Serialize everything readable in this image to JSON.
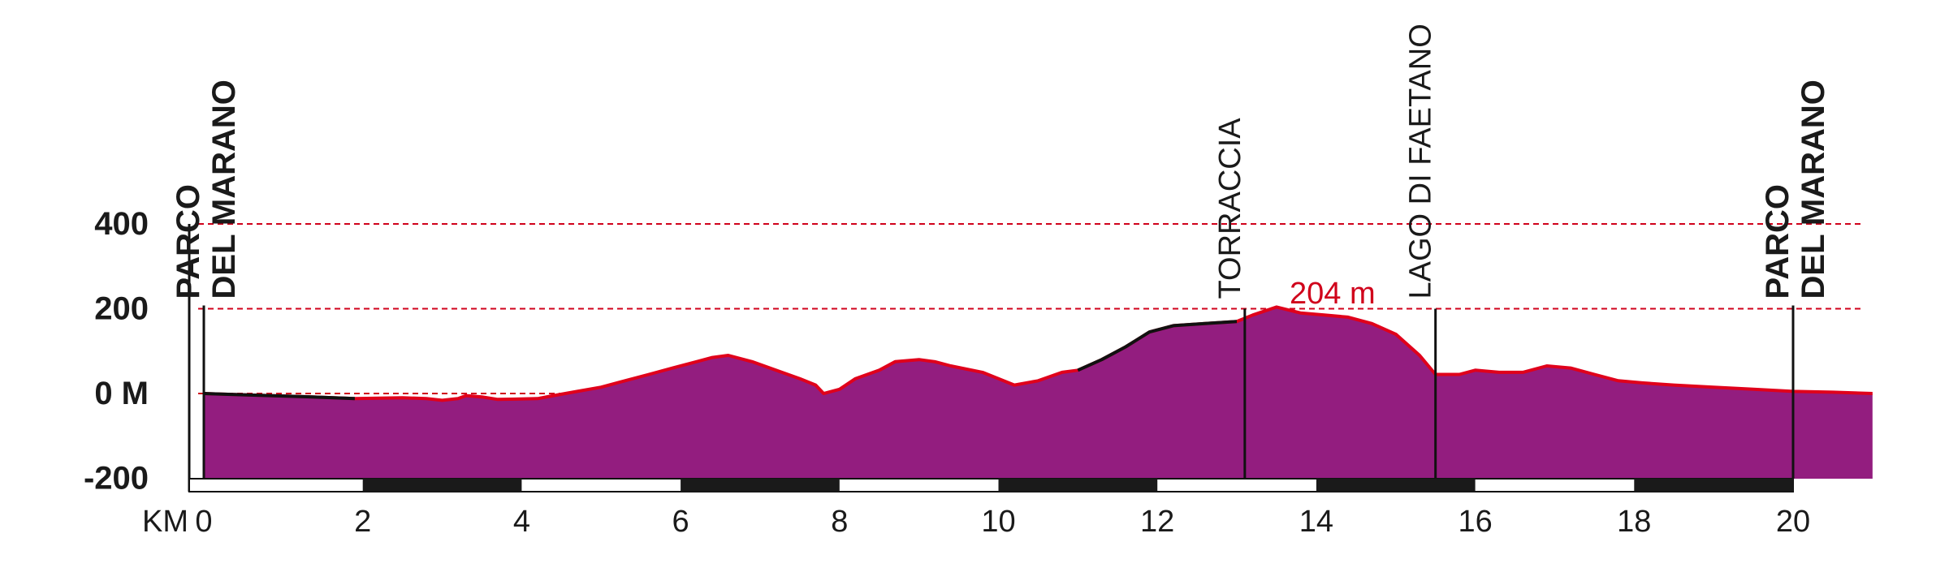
{
  "chart_data": {
    "type": "area",
    "title": "",
    "xlabel": "KM",
    "ylabel": "",
    "xlim": [
      0,
      21
    ],
    "ylim": [
      -200,
      400
    ],
    "x_ticks": [
      "0",
      "2",
      "4",
      "6",
      "8",
      "10",
      "12",
      "14",
      "16",
      "18",
      "20"
    ],
    "y_ticks": [
      {
        "value": 400,
        "label": "400"
      },
      {
        "value": 200,
        "label": "200"
      },
      {
        "value": 0,
        "label": "0 M"
      },
      {
        "value": -200,
        "label": "-200"
      }
    ],
    "reference_lines": [
      400,
      200,
      0
    ],
    "peak_annotation": {
      "x": 13.5,
      "y": 204,
      "label": "204 m"
    },
    "waypoints": [
      {
        "km": 0.0,
        "lines": [
          "PARCO",
          "DEL MARANO"
        ],
        "bold": true
      },
      {
        "km": 13.1,
        "lines": [
          "TORRACCIA"
        ],
        "bold": false
      },
      {
        "km": 15.5,
        "lines": [
          "LAGO DI FAETANO"
        ],
        "bold": false
      },
      {
        "km": 20.0,
        "lines": [
          "PARCO",
          "DEL MARANO"
        ],
        "bold": true
      }
    ],
    "colors": {
      "fill": "#931d7f",
      "outline": "#e0001b",
      "black_segments": "#111111",
      "reference": "#d0021b",
      "axis": "#111111"
    },
    "profile": [
      [
        0.0,
        0
      ],
      [
        0.5,
        -3
      ],
      [
        1.0,
        -6
      ],
      [
        1.5,
        -9
      ],
      [
        1.9,
        -12
      ],
      [
        2.5,
        -10
      ],
      [
        2.8,
        -12
      ],
      [
        3.0,
        -16
      ],
      [
        3.2,
        -12
      ],
      [
        3.3,
        -5
      ],
      [
        3.5,
        -8
      ],
      [
        3.7,
        -14
      ],
      [
        4.2,
        -12
      ],
      [
        4.4,
        -5
      ],
      [
        4.7,
        5
      ],
      [
        5.0,
        15
      ],
      [
        5.3,
        30
      ],
      [
        5.6,
        45
      ],
      [
        5.9,
        60
      ],
      [
        6.2,
        75
      ],
      [
        6.4,
        85
      ],
      [
        6.6,
        90
      ],
      [
        6.9,
        75
      ],
      [
        7.2,
        55
      ],
      [
        7.5,
        35
      ],
      [
        7.7,
        20
      ],
      [
        7.8,
        0
      ],
      [
        8.0,
        10
      ],
      [
        8.2,
        35
      ],
      [
        8.5,
        55
      ],
      [
        8.7,
        75
      ],
      [
        9.0,
        80
      ],
      [
        9.2,
        75
      ],
      [
        9.4,
        65
      ],
      [
        9.8,
        50
      ],
      [
        10.0,
        35
      ],
      [
        10.2,
        20
      ],
      [
        10.5,
        30
      ],
      [
        10.8,
        50
      ],
      [
        11.0,
        55
      ],
      [
        11.3,
        80
      ],
      [
        11.6,
        110
      ],
      [
        11.9,
        145
      ],
      [
        12.2,
        160
      ],
      [
        12.6,
        165
      ],
      [
        13.0,
        170
      ],
      [
        13.2,
        185
      ],
      [
        13.5,
        204
      ],
      [
        13.8,
        190
      ],
      [
        14.1,
        185
      ],
      [
        14.4,
        180
      ],
      [
        14.7,
        165
      ],
      [
        15.0,
        140
      ],
      [
        15.3,
        90
      ],
      [
        15.5,
        45
      ],
      [
        15.8,
        45
      ],
      [
        16.0,
        55
      ],
      [
        16.3,
        50
      ],
      [
        16.6,
        50
      ],
      [
        16.9,
        65
      ],
      [
        17.2,
        60
      ],
      [
        17.5,
        45
      ],
      [
        17.8,
        30
      ],
      [
        18.1,
        25
      ],
      [
        18.5,
        20
      ],
      [
        19.0,
        15
      ],
      [
        19.5,
        10
      ],
      [
        20.0,
        5
      ],
      [
        20.5,
        3
      ],
      [
        21.0,
        0
      ]
    ],
    "black_outline_ranges": [
      [
        0.0,
        1.9
      ],
      [
        10.9,
        13.0
      ],
      [
        13.3,
        13.7
      ]
    ],
    "km_bar_pattern": [
      {
        "from": 0,
        "to": 2,
        "color": "white"
      },
      {
        "from": 2,
        "to": 4,
        "color": "black"
      },
      {
        "from": 4,
        "to": 6,
        "color": "white"
      },
      {
        "from": 6,
        "to": 8,
        "color": "black"
      },
      {
        "from": 8,
        "to": 10,
        "color": "white"
      },
      {
        "from": 10,
        "to": 12,
        "color": "black"
      },
      {
        "from": 12,
        "to": 14,
        "color": "white"
      },
      {
        "from": 14,
        "to": 16,
        "color": "black"
      },
      {
        "from": 16,
        "to": 18,
        "color": "white"
      },
      {
        "from": 18,
        "to": 20,
        "color": "black"
      }
    ]
  }
}
